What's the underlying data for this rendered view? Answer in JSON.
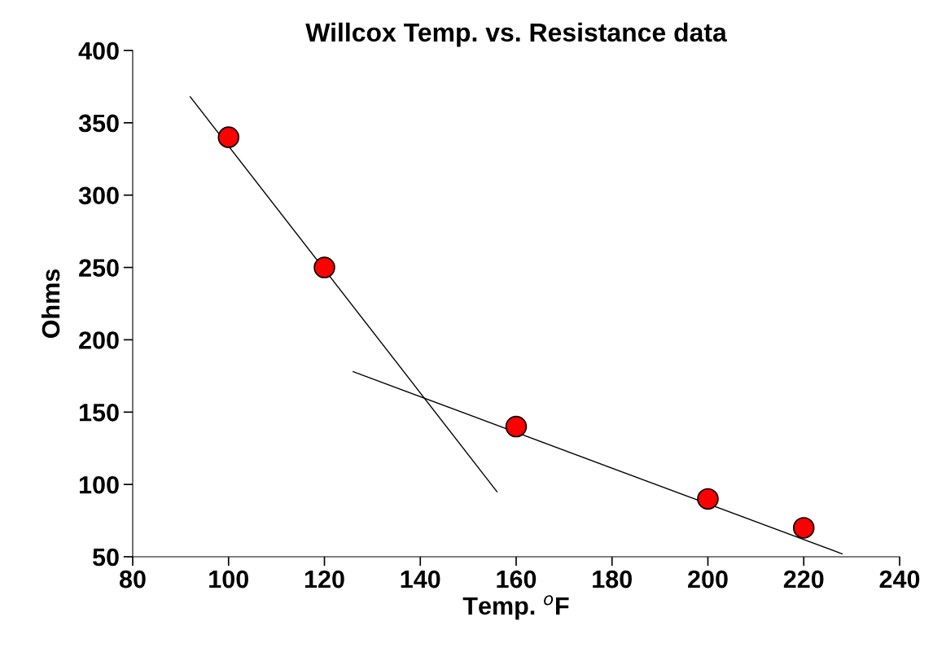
{
  "chart_data": {
    "type": "scatter",
    "title": "Willcox Temp. vs. Resistance data",
    "xlabel": "Temp. $^{o}$F",
    "ylabel": "Ohms",
    "xlim": [
      80,
      240
    ],
    "xticks": [
      80,
      100,
      120,
      140,
      160,
      180,
      200,
      220,
      240
    ],
    "ylim": [
      50,
      400
    ],
    "yticks": [
      50,
      100,
      150,
      200,
      250,
      300,
      350,
      400
    ],
    "grid": false,
    "legend": false,
    "series": [
      {
        "marker": "circle",
        "color": "#ff0000",
        "x": [
          100,
          120,
          160,
          200,
          220
        ],
        "values": [
          340,
          250,
          140,
          90,
          70
        ]
      },
      {
        "type": "line",
        "marker": "none",
        "color": "#000000",
        "x": [
          92,
          156
        ],
        "values": [
          368,
          95
        ]
      },
      {
        "type": "line",
        "marker": "none",
        "color": "#000000",
        "x": [
          126,
          228
        ],
        "values": [
          178,
          52
        ]
      }
    ]
  }
}
